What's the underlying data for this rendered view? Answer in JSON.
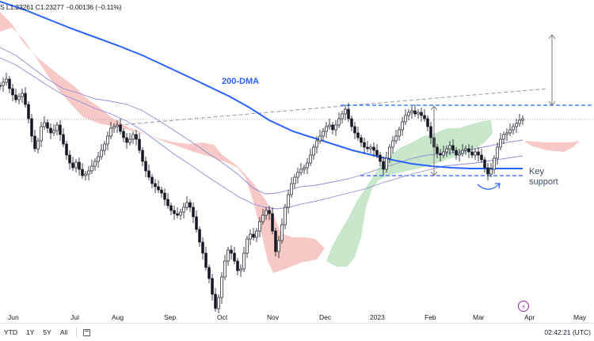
{
  "header": {
    "ohlc_text": "S  L1.23261  C1.23277  −0.00136 (−0.11%)"
  },
  "annotations": {
    "dma_label": "200-DMA",
    "key_support_line1": "Key",
    "key_support_line2": "support"
  },
  "x_axis": {
    "labels": [
      "Jun",
      "Jul",
      "Aug",
      "Sep",
      "Oct",
      "Nov",
      "Dec",
      "2023",
      "Feb",
      "Mar",
      "Apr",
      "May"
    ]
  },
  "bottom_bar": {
    "ranges": [
      "YTD",
      "1Y",
      "5Y",
      "All"
    ],
    "time": "02:42:21 (UTC)"
  },
  "icons": [
    "lightning-icon",
    "calendar-icon"
  ],
  "colors": {
    "candle": "#131722",
    "dma200": "#2962ff",
    "ma_thin": "#8c8ad6",
    "cloud_bear": "#f7c9c6",
    "cloud_bull": "#c8e6c9",
    "dashed": "#2962ff",
    "trendline": "#9598a1"
  }
}
